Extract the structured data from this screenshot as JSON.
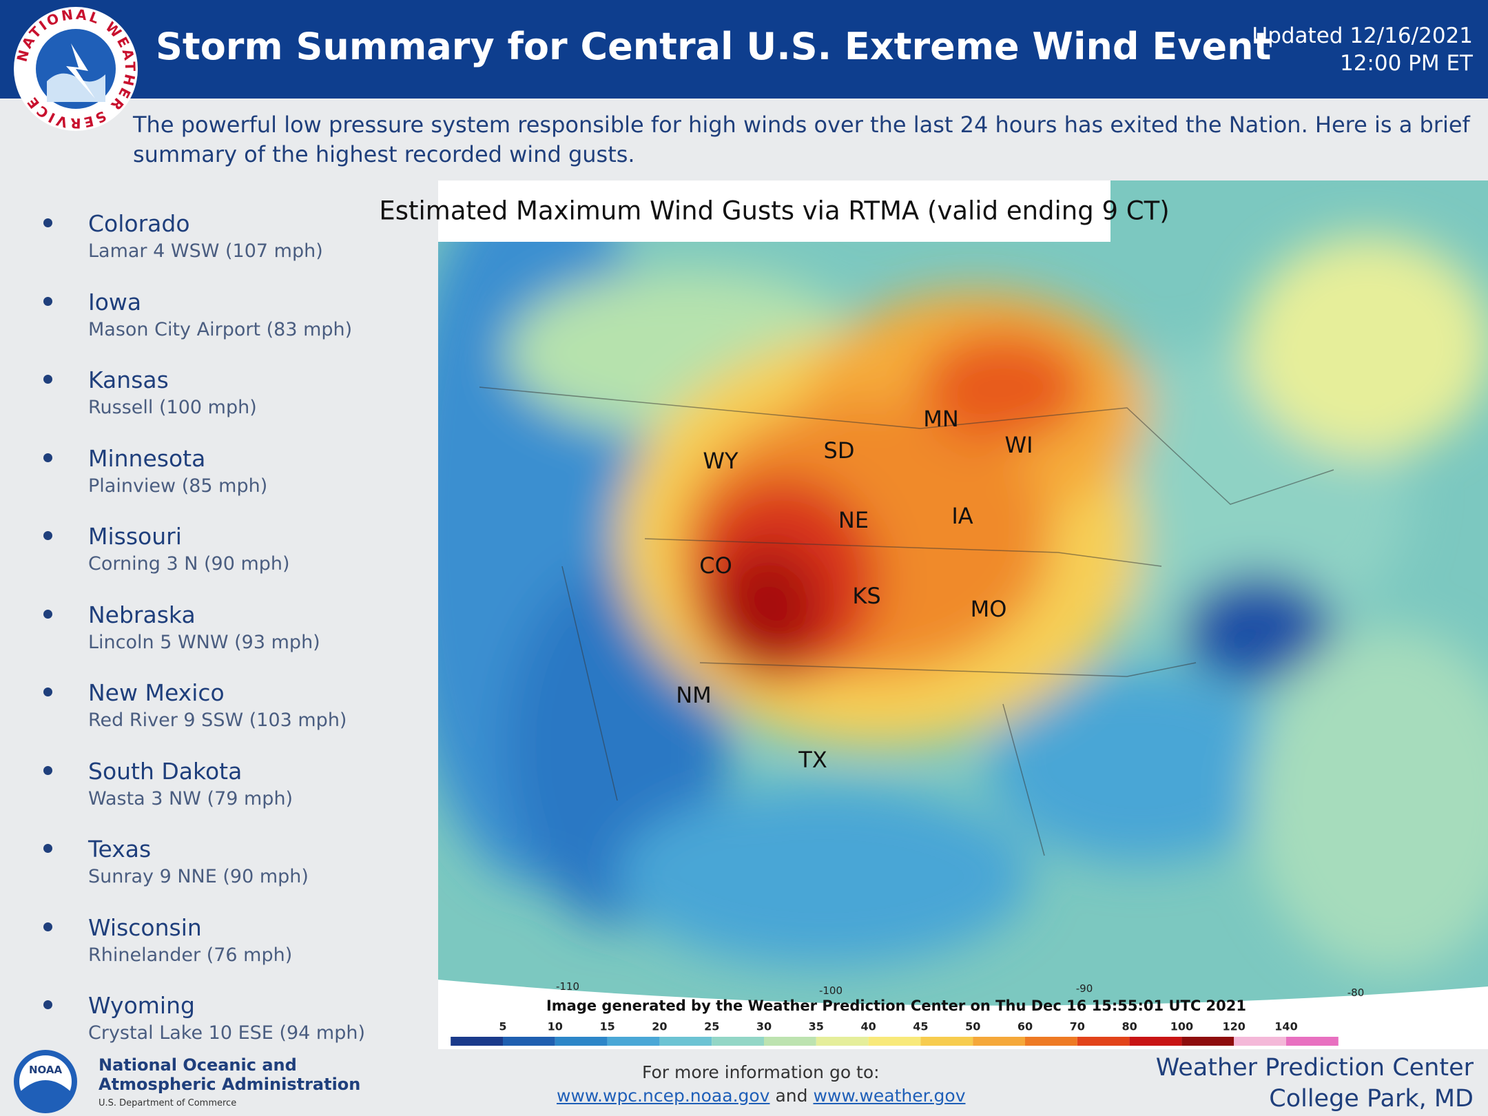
{
  "header": {
    "title": "Storm Summary for Central U.S. Extreme Wind Event",
    "updated_date": "Updated 12/16/2021",
    "updated_time": "12:00 PM ET",
    "logo_text": "NATIONAL WEATHER SERVICE"
  },
  "intro": "The powerful low pressure system responsible for high winds over the last 24 hours has exited the Nation. Here is a brief summary of the highest recorded wind gusts.",
  "gusts": [
    {
      "state": "Colorado",
      "station": "Lamar 4 WSW (107 mph)"
    },
    {
      "state": "Iowa",
      "station": "Mason City Airport (83 mph)"
    },
    {
      "state": "Kansas",
      "station": "Russell (100 mph)"
    },
    {
      "state": "Minnesota",
      "station": "Plainview (85 mph)"
    },
    {
      "state": "Missouri",
      "station": "Corning 3 N (90 mph)"
    },
    {
      "state": "Nebraska",
      "station": "Lincoln 5 WNW (93 mph)"
    },
    {
      "state": "New Mexico",
      "station": "Red River 9 SSW (103 mph)"
    },
    {
      "state": "South Dakota",
      "station": "Wasta 3 NW (79 mph)"
    },
    {
      "state": "Texas",
      "station": "Sunray 9 NNE (90 mph)"
    },
    {
      "state": "Wisconsin",
      "station": "Rhinelander (76 mph)"
    },
    {
      "state": "Wyoming",
      "station": "Crystal Lake 10 ESE (94 mph)"
    }
  ],
  "map": {
    "title": "Estimated Maximum Wind Gusts via RTMA (valid ending 9 CT)",
    "state_labels": [
      "WY",
      "SD",
      "MN",
      "WI",
      "NE",
      "IA",
      "CO",
      "KS",
      "MO",
      "NM",
      "TX"
    ],
    "longitude_labels": [
      "-110",
      "-100",
      "-90",
      "-80"
    ],
    "credit": "Image generated by the Weather Prediction Center on Thu Dec 16 15:55:01 UTC 2021",
    "colorbar_ticks": [
      5,
      10,
      15,
      20,
      25,
      30,
      35,
      40,
      45,
      50,
      60,
      70,
      80,
      100,
      120,
      140
    ]
  },
  "footer": {
    "noaa_logo": "NOAA",
    "noaa_name_1": "National Oceanic and",
    "noaa_name_2": "Atmospheric Administration",
    "noaa_dept": "U.S. Department of Commerce",
    "info": "For more information go to:",
    "link_1": "www.wpc.ncep.noaa.gov",
    "and": "and",
    "link_2": "www.weather.gov",
    "center": "Weather Prediction Center",
    "location": "College Park, MD"
  }
}
